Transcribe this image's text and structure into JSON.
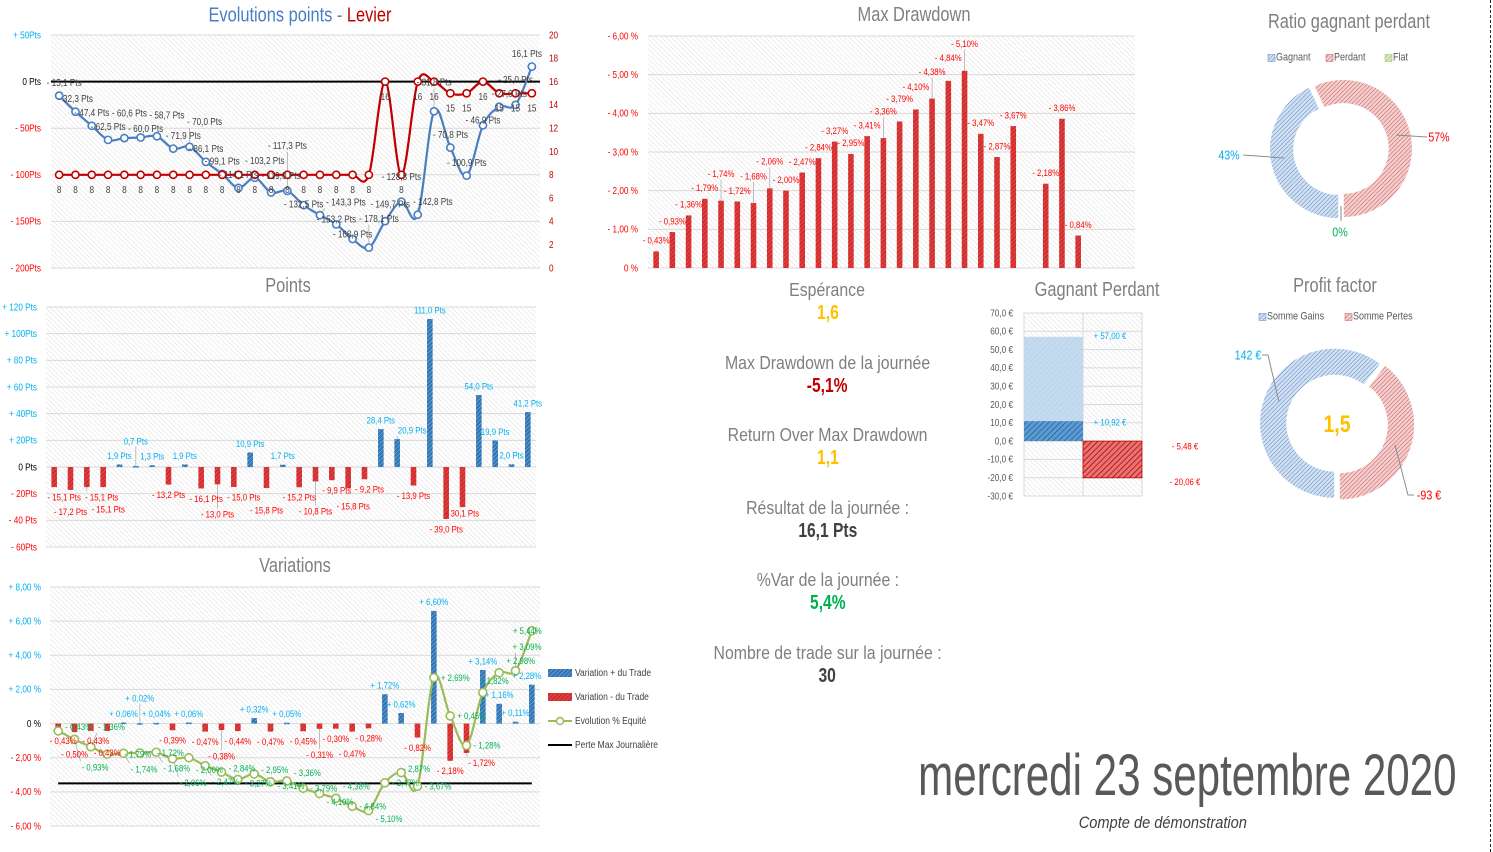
{
  "header": {
    "date": "mercredi 23 septembre 2020",
    "subtitle": "Compte de démonstration"
  },
  "stats": [
    {
      "label": "Espérance",
      "value": "1,6",
      "color": "#FFC000"
    },
    {
      "label": "Max Drawdown de la journée",
      "value": "-5,1%",
      "color": "#C00000"
    },
    {
      "label": "Return Over Max Drawdown",
      "value": "1,1",
      "color": "#FFC000"
    },
    {
      "label": "Résultat de la journée :",
      "value": "16,1 Pts",
      "color": "#404040"
    },
    {
      "label": "%Var de la journée :",
      "value": "5,4%",
      "color": "#00B050"
    },
    {
      "label": "Nombre de trade sur la journée :",
      "value": "30",
      "color": "#404040"
    }
  ],
  "chart_data": [
    {
      "type": "line",
      "title": {
        "main": "Evolutions points",
        "separator": "-",
        "secondary": "Levier"
      },
      "points_cumulative": [
        -15.1,
        -32.3,
        -47.4,
        -62.5,
        -60.6,
        -60.0,
        -58.7,
        -71.9,
        -70.0,
        -86.1,
        -99.1,
        -114.1,
        -103.2,
        -119.0,
        -117.3,
        -132.5,
        -143.3,
        -153.2,
        -168.9,
        -178.1,
        -149.7,
        -128.8,
        -142.8,
        -31.8,
        -70.8,
        -100.9,
        -46.9,
        -27.0,
        -25.0,
        16.1
      ],
      "levier": [
        8,
        8,
        8,
        8,
        8,
        8,
        8,
        8,
        8,
        8,
        8,
        8,
        8,
        8,
        8,
        8,
        8,
        8,
        8,
        8,
        16,
        8,
        16,
        16,
        15,
        15,
        16,
        15,
        15,
        15
      ],
      "y_left": {
        "ylim": [
          -200,
          50
        ],
        "ticks": [
          50,
          0,
          -50,
          -100,
          -150,
          -200
        ],
        "tick_labels": [
          "+ 50Pts",
          "0 Pts",
          "- 50Pts",
          "- 100Pts",
          "- 150Pts",
          "- 200Pts"
        ]
      },
      "y_right": {
        "ylim": [
          0,
          20
        ],
        "ticks": [
          0,
          2,
          4,
          6,
          8,
          10,
          12,
          14,
          16,
          18,
          20
        ]
      },
      "reference_line": 0,
      "colors": {
        "points": "#4A7EC2",
        "levier": "#C00000"
      }
    },
    {
      "type": "bar",
      "title": "Points",
      "values": [
        -15.1,
        -17.2,
        -15.1,
        -15.1,
        1.9,
        0.7,
        1.3,
        -13.2,
        1.9,
        -16.1,
        -13.0,
        -15.0,
        10.9,
        -15.8,
        1.7,
        -15.2,
        -10.8,
        -9.9,
        -15.8,
        -9.2,
        28.4,
        20.9,
        -13.9,
        111.0,
        -39.0,
        -30.1,
        54.0,
        19.9,
        2.0,
        41.2
      ],
      "ylim": [
        -60,
        120
      ],
      "ticks": [
        120,
        100,
        80,
        60,
        40,
        20,
        0,
        -20,
        -40,
        -60
      ],
      "tick_labels": [
        "+ 120 Pts",
        "+ 100Pts",
        "+ 80 Pts",
        "+ 60 Pts",
        "+ 40Pts",
        "+ 20Pts",
        "0 Pts",
        "- 20Pts",
        "- 40 Pts",
        "- 60Pts"
      ]
    },
    {
      "type": "bar",
      "title": "Variations",
      "variation": [
        -0.43,
        -0.5,
        -0.43,
        -0.43,
        0.06,
        0.02,
        0.04,
        -0.39,
        0.06,
        -0.47,
        -0.38,
        -0.44,
        0.32,
        -0.47,
        0.05,
        -0.45,
        -0.31,
        -0.3,
        -0.47,
        -0.28,
        1.72,
        0.62,
        -0.82,
        6.6,
        -2.18,
        -1.72,
        3.14,
        1.16,
        0.11,
        2.28
      ],
      "equity": [
        -0.43,
        -0.93,
        -1.36,
        -1.79,
        -1.74,
        -1.72,
        -1.68,
        -2.06,
        -2.0,
        -2.47,
        -2.84,
        -3.27,
        -2.95,
        -3.41,
        -3.36,
        -3.79,
        -4.1,
        -4.38,
        -4.84,
        -5.1,
        -3.47,
        -2.87,
        -3.67,
        2.69,
        0.45,
        -1.28,
        1.82,
        2.98,
        3.09,
        5.44
      ],
      "max_daily_loss": -3.5,
      "ylim": [
        -6,
        8
      ],
      "ticks": [
        8,
        6,
        4,
        2,
        0,
        -2,
        -4,
        -6
      ],
      "tick_labels": [
        "+ 8,00 %",
        "+ 6,00 %",
        "+ 4,00 %",
        "+ 2,00 %",
        "0 %",
        "- 2,00 %",
        "- 4,00 %",
        "- 6,00 %"
      ],
      "legend": [
        "Variation + du Trade",
        "Variation - du Trade",
        "Evolution % Equité",
        "Perte Max Journalière"
      ]
    },
    {
      "type": "bar",
      "title": "Max Drawdown",
      "values": [
        -0.43,
        -0.93,
        -1.36,
        -1.79,
        -1.74,
        -1.72,
        -1.68,
        -2.06,
        -2.0,
        -2.47,
        -2.84,
        -3.27,
        -2.95,
        -3.41,
        -3.36,
        -3.79,
        -4.1,
        -4.38,
        -4.84,
        -5.1,
        -3.47,
        -2.87,
        -3.67,
        0,
        -2.18,
        -3.86,
        -0.84,
        0,
        0,
        0
      ],
      "ylim": [
        -6,
        0
      ],
      "ticks": [
        -6,
        -5,
        -4,
        -3,
        -2,
        -1,
        0
      ],
      "tick_labels": [
        "- 6,00 %",
        "- 5,00 %",
        "- 4,00 %",
        "- 3,00 %",
        "- 2,00 %",
        "- 1,00 %",
        "0 %"
      ]
    },
    {
      "type": "bar",
      "title": "Gagnant Perdant",
      "gain_max": 57.0,
      "gain_moyen": 10.92,
      "perte_moyenne": -5.48,
      "perte_max": -20.06,
      "ylim": [
        -30,
        70
      ],
      "ticks": [
        70,
        60,
        50,
        40,
        30,
        20,
        10,
        0,
        -10,
        -20,
        -30
      ],
      "tick_labels": [
        "70,0 €",
        "60,0 €",
        "50,0 €",
        "40,0 €",
        "30,0 €",
        "20,0 €",
        "10,0 €",
        "0,0 €",
        "-10,0 €",
        "-20,0 €",
        "-30,0 €"
      ]
    },
    {
      "type": "pie",
      "title": "Ratio gagnant perdant",
      "slices": [
        {
          "label": "Gagnant",
          "value": 43,
          "display": "43%",
          "color": "#4A7EC2",
          "label_color": "#00B0F0"
        },
        {
          "label": "Perdant",
          "value": 57,
          "display": "57%",
          "color": "#C0504D",
          "label_color": "#FF0000"
        },
        {
          "label": "Flat",
          "value": 0,
          "display": "0%",
          "color": "#9BBB59",
          "label_color": "#00B050"
        }
      ]
    },
    {
      "type": "pie",
      "title": "Profit factor",
      "slices": [
        {
          "label": "Somme Gains",
          "value": 142,
          "display": "142 €",
          "color": "#4A7EC2",
          "label_color": "#00B0F0"
        },
        {
          "label": "Somme Pertes",
          "value": -93,
          "display": "-93 €",
          "color": "#C0504D",
          "label_color": "#FF0000"
        }
      ],
      "center_value": "1,5",
      "center_color": "#FFC000"
    }
  ]
}
